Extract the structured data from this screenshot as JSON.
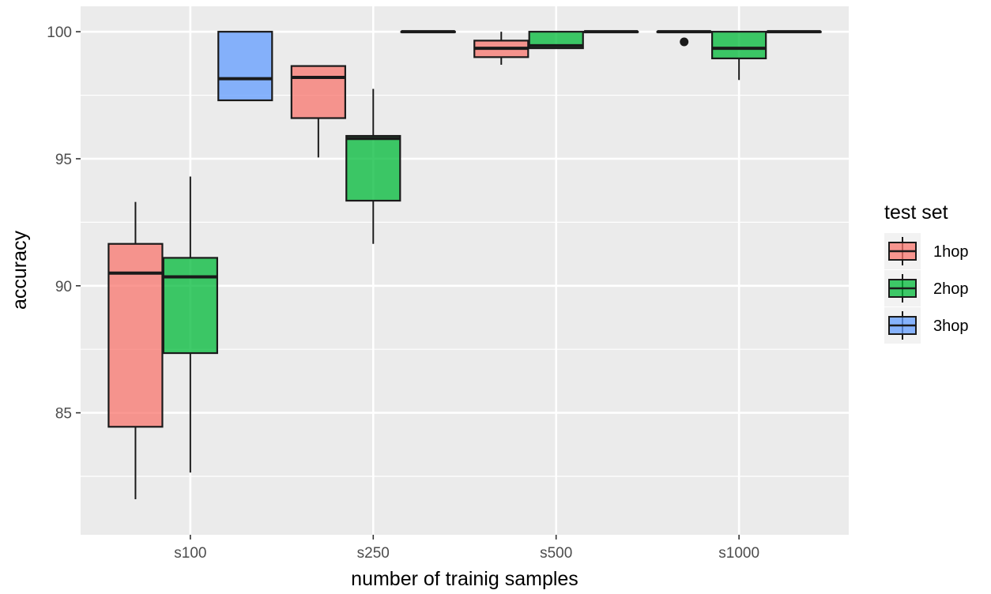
{
  "chart_data": {
    "type": "boxplot",
    "title": "",
    "xlabel": "number of trainig samples",
    "ylabel": "accuracy",
    "categories": [
      "s100",
      "s250",
      "s500",
      "s1000"
    ],
    "ylim": [
      80.2,
      101.0
    ],
    "yticks": [
      85,
      90,
      95,
      100
    ],
    "grid": true,
    "legend": {
      "title": "test set",
      "position": "right",
      "entries": [
        "1hop",
        "2hop",
        "3hop"
      ]
    },
    "series": [
      {
        "name": "1hop",
        "color": "#F8766D",
        "boxes": [
          {
            "category": "s100",
            "min": 81.6,
            "q1": 84.45,
            "median": 90.5,
            "q3": 91.65,
            "max": 93.3,
            "outliers": []
          },
          {
            "category": "s250",
            "min": 95.05,
            "q1": 96.6,
            "median": 98.2,
            "q3": 98.65,
            "max": 98.65,
            "outliers": []
          },
          {
            "category": "s500",
            "min": 98.7,
            "q1": 99.0,
            "median": 99.35,
            "q3": 99.65,
            "max": 100.0,
            "outliers": []
          },
          {
            "category": "s1000",
            "min": 100.0,
            "q1": 100.0,
            "median": 100.0,
            "q3": 100.0,
            "max": 100.0,
            "outliers": [
              99.6
            ]
          }
        ]
      },
      {
        "name": "2hop",
        "color": "#00BA38",
        "boxes": [
          {
            "category": "s100",
            "min": 82.65,
            "q1": 87.35,
            "median": 90.35,
            "q3": 91.1,
            "max": 94.3,
            "outliers": []
          },
          {
            "category": "s250",
            "min": 91.65,
            "q1": 93.35,
            "median": 95.8,
            "q3": 95.9,
            "max": 97.75,
            "outliers": []
          },
          {
            "category": "s500",
            "min": 99.35,
            "q1": 99.35,
            "median": 99.45,
            "q3": 100.0,
            "max": 100.0,
            "outliers": []
          },
          {
            "category": "s1000",
            "min": 98.1,
            "q1": 98.95,
            "median": 99.35,
            "q3": 100.0,
            "max": 100.0,
            "outliers": []
          }
        ]
      },
      {
        "name": "3hop",
        "color": "#619CFF",
        "boxes": [
          {
            "category": "s100",
            "min": 97.3,
            "q1": 97.3,
            "median": 98.15,
            "q3": 100.0,
            "max": 100.0,
            "outliers": []
          },
          {
            "category": "s250",
            "min": 100.0,
            "q1": 100.0,
            "median": 100.0,
            "q3": 100.0,
            "max": 100.0,
            "outliers": []
          },
          {
            "category": "s500",
            "min": 100.0,
            "q1": 100.0,
            "median": 100.0,
            "q3": 100.0,
            "max": 100.0,
            "outliers": []
          },
          {
            "category": "s1000",
            "min": 100.0,
            "q1": 100.0,
            "median": 100.0,
            "q3": 100.0,
            "max": 100.0,
            "outliers": []
          }
        ]
      }
    ]
  }
}
